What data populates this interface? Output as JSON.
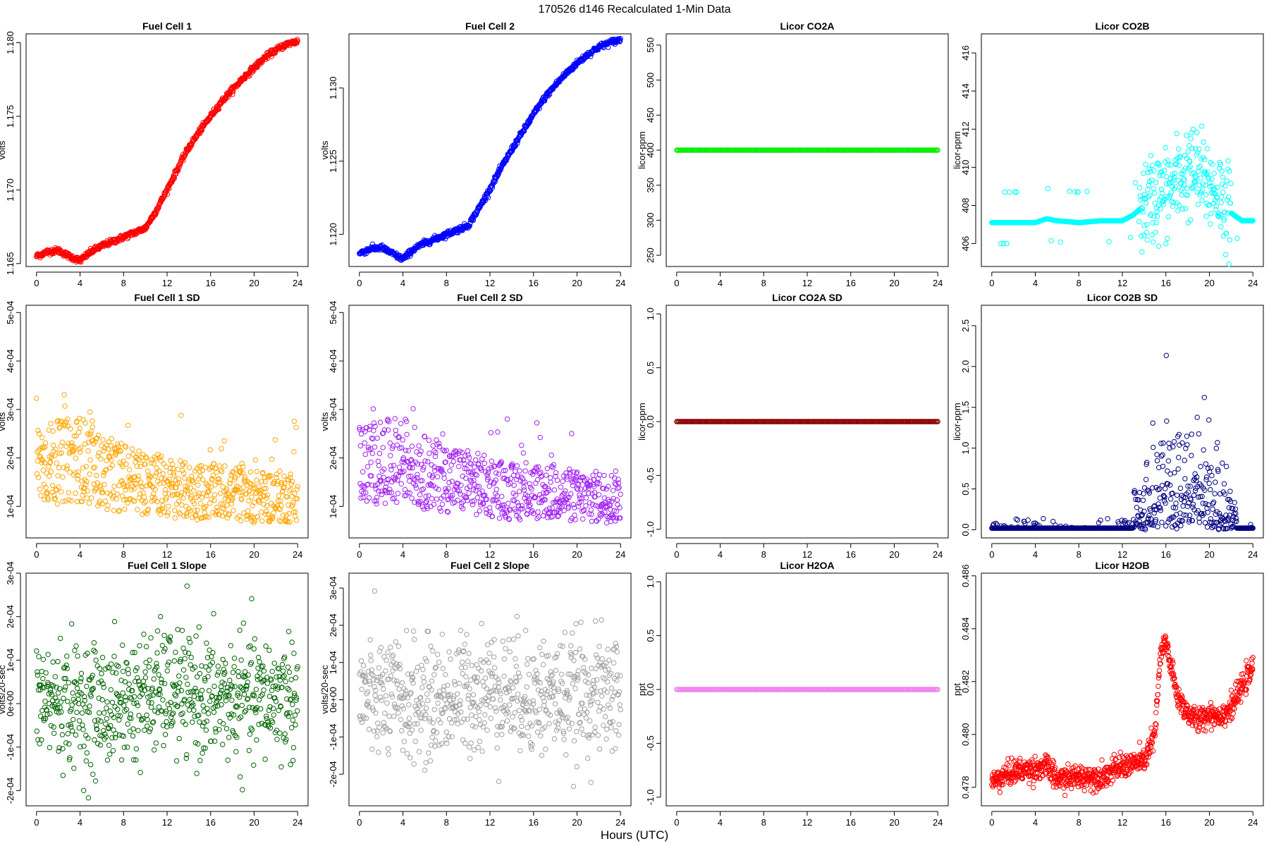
{
  "figure": {
    "title": "170526   d146   Recalculated 1-Min Data",
    "xlabel": "Hours (UTC)"
  },
  "chart_data": [
    {
      "type": "scatter",
      "title": "Fuel Cell 1",
      "ylabel": "volts",
      "color": "#ff0000",
      "xlim": [
        -0.96,
        24.96
      ],
      "ylim": [
        1.1648,
        1.1806
      ],
      "xticks": [
        0,
        4,
        8,
        12,
        16,
        20,
        24
      ],
      "yticks": [
        1.165,
        1.17,
        1.175,
        1.18
      ],
      "ytick_labels": [
        "1.165",
        "1.170",
        "1.175",
        "1.180"
      ],
      "series": [
        {
          "name": "Fuel Cell 1",
          "values": [
            [
              0,
              1.1655
            ],
            [
              1,
              1.1658
            ],
            [
              2,
              1.1659
            ],
            [
              3,
              1.1655
            ],
            [
              4,
              1.1652
            ],
            [
              5,
              1.1658
            ],
            [
              6,
              1.1662
            ],
            [
              7,
              1.1665
            ],
            [
              8,
              1.1668
            ],
            [
              9,
              1.1671
            ],
            [
              10,
              1.1674
            ],
            [
              11,
              1.1686
            ],
            [
              12,
              1.17
            ],
            [
              13,
              1.1715
            ],
            [
              14,
              1.1729
            ],
            [
              15,
              1.174
            ],
            [
              16,
              1.175
            ],
            [
              17,
              1.176
            ],
            [
              18,
              1.1768
            ],
            [
              19,
              1.1776
            ],
            [
              20,
              1.1783
            ],
            [
              21,
              1.179
            ],
            [
              22,
              1.1795
            ],
            [
              23,
              1.1799
            ],
            [
              24,
              1.1801
            ]
          ]
        }
      ]
    },
    {
      "type": "scatter",
      "title": "Fuel Cell 2",
      "ylabel": "volts",
      "color": "#0000ff",
      "xlim": [
        -0.96,
        24.96
      ],
      "ylim": [
        1.1178,
        1.1337
      ],
      "xticks": [
        0,
        4,
        8,
        12,
        16,
        20,
        24
      ],
      "yticks": [
        1.12,
        1.125,
        1.13
      ],
      "ytick_labels": [
        "1.120",
        "1.125",
        "1.130"
      ],
      "series": [
        {
          "name": "Fuel Cell 2",
          "values": [
            [
              0,
              1.1187
            ],
            [
              1,
              1.119
            ],
            [
              2,
              1.1191
            ],
            [
              3,
              1.1187
            ],
            [
              4,
              1.1183
            ],
            [
              5,
              1.119
            ],
            [
              6,
              1.1194
            ],
            [
              7,
              1.1197
            ],
            [
              8,
              1.12
            ],
            [
              9,
              1.1203
            ],
            [
              10,
              1.1206
            ],
            [
              11,
              1.1218
            ],
            [
              12,
              1.1231
            ],
            [
              13,
              1.1245
            ],
            [
              14,
              1.1258
            ],
            [
              15,
              1.127
            ],
            [
              16,
              1.1282
            ],
            [
              17,
              1.1293
            ],
            [
              18,
              1.1302
            ],
            [
              19,
              1.131
            ],
            [
              20,
              1.1317
            ],
            [
              21,
              1.1323
            ],
            [
              22,
              1.1328
            ],
            [
              23,
              1.1331
            ],
            [
              24,
              1.1333
            ]
          ]
        }
      ]
    },
    {
      "type": "scatter",
      "title": "Licor CO2A",
      "ylabel": "licor-ppm",
      "color": "#00ee00",
      "xlim": [
        -0.96,
        24.96
      ],
      "ylim": [
        234,
        566
      ],
      "xticks": [
        0,
        4,
        8,
        12,
        16,
        20,
        24
      ],
      "yticks": [
        250,
        300,
        350,
        400,
        450,
        500,
        550
      ],
      "ytick_labels": [
        "250",
        "300",
        "350",
        "400",
        "450",
        "500",
        "550"
      ],
      "series": [
        {
          "name": "Licor CO2A",
          "values": [
            [
              0,
              400
            ],
            [
              24,
              400
            ]
          ]
        }
      ]
    },
    {
      "type": "scatter",
      "title": "Licor CO2B",
      "ylabel": "licor-ppm",
      "color": "#00ffff",
      "xlim": [
        -0.96,
        24.96
      ],
      "ylim": [
        404.8,
        417.0
      ],
      "xticks": [
        0,
        4,
        8,
        12,
        16,
        20,
        24
      ],
      "yticks": [
        406,
        408,
        410,
        412,
        414,
        416
      ],
      "ytick_labels": [
        "406",
        "408",
        "410",
        "412",
        "414",
        "416"
      ],
      "series": [
        {
          "name": "Licor CO2B",
          "values": [
            [
              0,
              407.1
            ],
            [
              2,
              407.1
            ],
            [
              4,
              407.1
            ],
            [
              5,
              407.3
            ],
            [
              6,
              407.2
            ],
            [
              8,
              407.1
            ],
            [
              10,
              407.2
            ],
            [
              12,
              407.2
            ],
            [
              13,
              407.5
            ],
            [
              14,
              408.0
            ],
            [
              15,
              408.5
            ],
            [
              16,
              408.6
            ],
            [
              17,
              409.2
            ],
            [
              18,
              409.8
            ],
            [
              19,
              409.6
            ],
            [
              20,
              409.0
            ],
            [
              21,
              408.6
            ],
            [
              22,
              407.6
            ],
            [
              23,
              407.2
            ],
            [
              24,
              407.2
            ]
          ]
        }
      ]
    },
    {
      "type": "scatter",
      "title": "Fuel Cell 1 SD",
      "ylabel": "volts",
      "color": "#ffa500",
      "xlim": [
        -0.96,
        24.96
      ],
      "ylim": [
        3.5e-05,
        0.000515
      ],
      "xticks": [
        0,
        4,
        8,
        12,
        16,
        20,
        24
      ],
      "yticks": [
        0.0001,
        0.0002,
        0.0003,
        0.0004,
        0.0005
      ],
      "ytick_labels": [
        "1e-04",
        "2e-04",
        "3e-04",
        "4e-04",
        "5e-04"
      ],
      "series": [
        {
          "name": "Fuel Cell 1 SD",
          "values": [
            [
              0,
              0.00019
            ],
            [
              2,
              0.00019
            ],
            [
              4,
              0.0002
            ],
            [
              6,
              0.00017
            ],
            [
              8,
              0.00016
            ],
            [
              10,
              0.00015
            ],
            [
              12,
              0.00014
            ],
            [
              14,
              0.00013
            ],
            [
              16,
              0.00013
            ],
            [
              18,
              0.00013
            ],
            [
              20,
              0.00012
            ],
            [
              22,
              0.00012
            ],
            [
              24,
              0.00012
            ]
          ]
        }
      ]
    },
    {
      "type": "scatter",
      "title": "Fuel Cell 2 SD",
      "ylabel": "volts",
      "color": "#a020f0",
      "xlim": [
        -0.96,
        24.96
      ],
      "ylim": [
        3.5e-05,
        0.000515
      ],
      "xticks": [
        0,
        4,
        8,
        12,
        16,
        20,
        24
      ],
      "yticks": [
        0.0001,
        0.0002,
        0.0003,
        0.0004,
        0.0005
      ],
      "ytick_labels": [
        "1e-04",
        "2e-04",
        "3e-04",
        "4e-04",
        "5e-04"
      ],
      "series": [
        {
          "name": "Fuel Cell 2 SD",
          "values": [
            [
              0,
              0.00019
            ],
            [
              2,
              0.00019
            ],
            [
              4,
              0.0002
            ],
            [
              6,
              0.00017
            ],
            [
              8,
              0.00016
            ],
            [
              10,
              0.00015
            ],
            [
              12,
              0.00014
            ],
            [
              14,
              0.00013
            ],
            [
              16,
              0.00013
            ],
            [
              18,
              0.00013
            ],
            [
              20,
              0.00012
            ],
            [
              22,
              0.00012
            ],
            [
              24,
              0.00012
            ]
          ]
        }
      ]
    },
    {
      "type": "scatter",
      "title": "Licor CO2A SD",
      "ylabel": "licor-ppm",
      "color": "#8b0000",
      "xlim": [
        -0.96,
        24.96
      ],
      "ylim": [
        -1.08,
        1.08
      ],
      "xticks": [
        0,
        4,
        8,
        12,
        16,
        20,
        24
      ],
      "yticks": [
        -1.0,
        -0.5,
        0.0,
        0.5,
        1.0
      ],
      "ytick_labels": [
        "-1.0",
        "-0.5",
        "0.0",
        "0.5",
        "1.0"
      ],
      "series": [
        {
          "name": "Licor CO2A SD",
          "values": [
            [
              0,
              0
            ],
            [
              24,
              0
            ]
          ]
        }
      ]
    },
    {
      "type": "scatter",
      "title": "Licor CO2B SD",
      "ylabel": "licor-ppm",
      "color": "#000080",
      "xlim": [
        -0.96,
        24.96
      ],
      "ylim": [
        -0.1,
        2.75
      ],
      "xticks": [
        0,
        4,
        8,
        12,
        16,
        20,
        24
      ],
      "yticks": [
        0.0,
        0.5,
        1.0,
        1.5,
        2.0,
        2.5
      ],
      "ytick_labels": [
        "0.0",
        "0.5",
        "1.0",
        "1.5",
        "2.0",
        "2.5"
      ],
      "series": [
        {
          "name": "Licor CO2B SD",
          "values": [
            [
              0,
              0.02
            ],
            [
              4,
              0.02
            ],
            [
              6,
              0.05
            ],
            [
              8,
              0.03
            ],
            [
              10,
              0.03
            ],
            [
              12,
              0.08
            ],
            [
              14,
              0.25
            ],
            [
              16,
              0.45
            ],
            [
              18,
              0.5
            ],
            [
              20,
              0.4
            ],
            [
              22,
              0.15
            ],
            [
              24,
              0.02
            ]
          ]
        }
      ]
    },
    {
      "type": "scatter",
      "title": "Fuel Cell 1 Slope",
      "ylabel": "volts/20-sec",
      "color": "#006400",
      "xlim": [
        -0.96,
        24.96
      ],
      "ylim": [
        -0.000235,
        0.0003
      ],
      "xticks": [
        0,
        4,
        8,
        12,
        16,
        20,
        24
      ],
      "yticks": [
        -0.0002,
        -0.0001,
        0.0,
        0.0001,
        0.0002,
        0.0003
      ],
      "ytick_labels": [
        "-2e-04",
        "-1e-04",
        "0e+00",
        "1e-04",
        "2e-04",
        "3e-04"
      ],
      "series": [
        {
          "name": "Fuel Cell 1 Slope",
          "values": [
            [
              0,
              1e-05
            ],
            [
              6,
              -1e-05
            ],
            [
              12,
              3e-05
            ],
            [
              16,
              1e-05
            ],
            [
              20,
              1e-05
            ],
            [
              24,
              2e-05
            ]
          ]
        }
      ]
    },
    {
      "type": "scatter",
      "title": "Fuel Cell 2 Slope",
      "ylabel": "volts/20-sec",
      "color": "#a0a0a0",
      "xlim": [
        -0.96,
        24.96
      ],
      "ylim": [
        -0.000285,
        0.00034
      ],
      "xticks": [
        0,
        4,
        8,
        12,
        16,
        20,
        24
      ],
      "yticks": [
        -0.0002,
        -0.0001,
        0.0,
        0.0001,
        0.0002,
        0.0003
      ],
      "ytick_labels": [
        "-2e-04",
        "-1e-04",
        "0e+00",
        "1e-04",
        "2e-04",
        "3e-04"
      ],
      "series": [
        {
          "name": "Fuel Cell 2 Slope",
          "values": [
            [
              0,
              1e-05
            ],
            [
              6,
              -1e-05
            ],
            [
              12,
              3e-05
            ],
            [
              16,
              1e-05
            ],
            [
              20,
              1e-05
            ],
            [
              24,
              2e-05
            ]
          ]
        }
      ]
    },
    {
      "type": "scatter",
      "title": "Licor H2OA",
      "ylabel": "ppt",
      "color": "#ee82ee",
      "xlim": [
        -0.96,
        24.96
      ],
      "ylim": [
        -1.08,
        1.08
      ],
      "xticks": [
        0,
        4,
        8,
        12,
        16,
        20,
        24
      ],
      "yticks": [
        -1.0,
        -0.5,
        0.0,
        0.5,
        1.0
      ],
      "ytick_labels": [
        "-1.0",
        "-0.5",
        "0.0",
        "0.5",
        "1.0"
      ],
      "series": [
        {
          "name": "Licor H2OA",
          "values": [
            [
              0,
              0
            ],
            [
              24,
              0
            ]
          ]
        }
      ]
    },
    {
      "type": "scatter",
      "title": "Licor H2OB",
      "ylabel": "ppt",
      "color": "#ff0000",
      "xlim": [
        -0.96,
        24.96
      ],
      "ylim": [
        0.4773,
        0.4861
      ],
      "xticks": [
        0,
        4,
        8,
        12,
        16,
        20,
        24
      ],
      "yticks": [
        0.478,
        0.48,
        0.482,
        0.484,
        0.486
      ],
      "ytick_labels": [
        "0.478",
        "0.480",
        "0.482",
        "0.484",
        "0.486"
      ],
      "series": [
        {
          "name": "Licor H2OB",
          "values": [
            [
              0,
              0.4782
            ],
            [
              2,
              0.4786
            ],
            [
              4,
              0.4787
            ],
            [
              5,
              0.4788
            ],
            [
              6,
              0.4783
            ],
            [
              8,
              0.4784
            ],
            [
              10,
              0.4784
            ],
            [
              12,
              0.4788
            ],
            [
              14,
              0.479
            ],
            [
              15,
              0.48
            ],
            [
              15.5,
              0.483
            ],
            [
              16,
              0.4835
            ],
            [
              17,
              0.4815
            ],
            [
              18,
              0.4808
            ],
            [
              19,
              0.4805
            ],
            [
              20,
              0.4808
            ],
            [
              21,
              0.4807
            ],
            [
              22,
              0.481
            ],
            [
              23,
              0.4818
            ],
            [
              24,
              0.4825
            ]
          ]
        }
      ]
    }
  ]
}
